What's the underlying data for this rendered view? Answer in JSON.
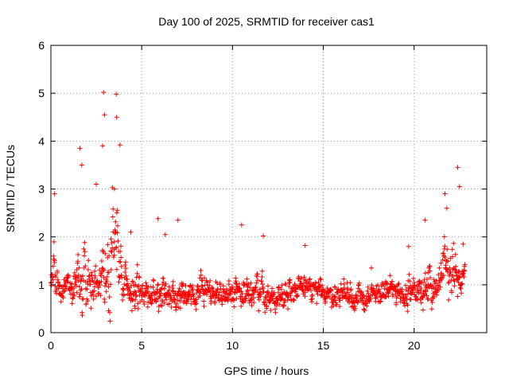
{
  "chart_data": {
    "type": "scatter",
    "title": "Day 100 of 2025, SRMTID for receiver cas1",
    "xlabel": "GPS time / hours",
    "ylabel": "SRMTID / TECUs",
    "xlim": [
      0,
      24
    ],
    "ylim": [
      0,
      6
    ],
    "x_ticks": [
      0,
      5,
      10,
      15,
      20
    ],
    "y_ticks": [
      0,
      1,
      2,
      3,
      4,
      5,
      6
    ],
    "x_tick_labels": [
      "0",
      "5",
      "10",
      "15",
      "20"
    ],
    "y_tick_labels": [
      "0",
      "1",
      "2",
      "3",
      "4",
      "5",
      "6"
    ],
    "grid": true,
    "marker": "plus",
    "color": "#ff0000",
    "x_range_hours": [
      0,
      22.8
    ],
    "series": [
      {
        "name": "SRMTID",
        "profile_hours": [
          0,
          0.2,
          0.5,
          1.0,
          1.5,
          2.0,
          2.5,
          3.0,
          3.3,
          3.6,
          4.0,
          4.5,
          5.0,
          5.5,
          6.0,
          6.5,
          7.0,
          8.0,
          9.0,
          10.0,
          10.5,
          11.0,
          11.5,
          12.0,
          13.0,
          14.0,
          15.0,
          16.0,
          17.0,
          18.0,
          19.0,
          20.0,
          20.5,
          21.0,
          21.3,
          21.6,
          22.0,
          22.3,
          22.5,
          22.8
        ],
        "profile_typical_tecu": [
          1.1,
          1.4,
          0.9,
          1.0,
          1.1,
          1.0,
          1.0,
          1.6,
          1.4,
          1.7,
          1.2,
          0.9,
          0.8,
          0.7,
          0.9,
          0.7,
          0.7,
          0.8,
          0.8,
          0.8,
          0.9,
          0.8,
          0.8,
          0.7,
          0.9,
          0.9,
          0.8,
          0.8,
          0.7,
          0.8,
          0.9,
          0.8,
          0.9,
          1.0,
          0.9,
          1.4,
          1.2,
          1.3,
          1.1,
          1.2
        ],
        "profile_spread_tecu": [
          0.5,
          0.9,
          0.5,
          0.7,
          1.2,
          1.0,
          1.2,
          2.0,
          1.8,
          1.6,
          0.9,
          0.7,
          0.7,
          0.6,
          0.7,
          0.6,
          0.6,
          0.5,
          0.5,
          0.6,
          0.8,
          0.6,
          0.6,
          0.5,
          0.6,
          0.6,
          0.5,
          0.5,
          0.5,
          0.5,
          0.6,
          0.5,
          0.8,
          0.8,
          0.6,
          1.2,
          1.0,
          1.0,
          0.7,
          0.6
        ],
        "peaks": [
          {
            "x": 0.2,
            "y": 2.9
          },
          {
            "x": 1.6,
            "y": 3.85
          },
          {
            "x": 1.7,
            "y": 3.5
          },
          {
            "x": 2.5,
            "y": 3.1
          },
          {
            "x": 2.9,
            "y": 5.02
          },
          {
            "x": 2.95,
            "y": 4.55
          },
          {
            "x": 2.85,
            "y": 3.9
          },
          {
            "x": 3.6,
            "y": 4.98
          },
          {
            "x": 3.62,
            "y": 4.5
          },
          {
            "x": 3.8,
            "y": 3.92
          },
          {
            "x": 3.5,
            "y": 3.0
          },
          {
            "x": 4.4,
            "y": 2.1
          },
          {
            "x": 5.9,
            "y": 2.38
          },
          {
            "x": 6.3,
            "y": 2.05
          },
          {
            "x": 7.0,
            "y": 2.35
          },
          {
            "x": 10.5,
            "y": 2.25
          },
          {
            "x": 11.7,
            "y": 2.02
          },
          {
            "x": 14.0,
            "y": 1.82
          },
          {
            "x": 19.7,
            "y": 1.8
          },
          {
            "x": 20.6,
            "y": 2.35
          },
          {
            "x": 21.7,
            "y": 2.9
          },
          {
            "x": 21.8,
            "y": 2.6
          },
          {
            "x": 22.4,
            "y": 3.45
          },
          {
            "x": 22.5,
            "y": 3.05
          },
          {
            "x": 22.7,
            "y": 1.85
          }
        ],
        "points_count": 1400
      }
    ]
  }
}
